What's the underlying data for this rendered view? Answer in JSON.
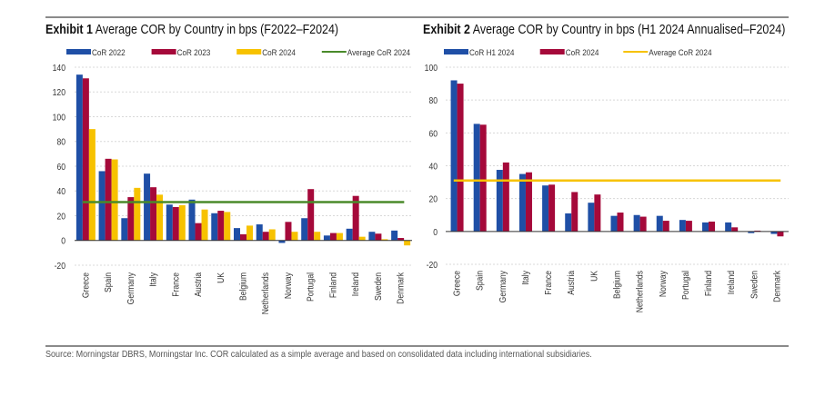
{
  "page": {
    "source": "Source: Morningstar DBRS, Morningstar Inc. COR calculated as a simple average and based on consolidated data including international subsidiaries."
  },
  "colors": {
    "blue": "#1f4fa6",
    "red": "#a5093a",
    "yellow": "#f7c200",
    "green": "#4a8a2a"
  },
  "chart_data": [
    {
      "type": "bar",
      "title_bold": "Exhibit 1",
      "title": "Average COR by Country in bps (F2022–F2024)",
      "xlabel": "",
      "ylabel": "",
      "ylim": [
        -20,
        140
      ],
      "yticks": [
        -20,
        0,
        20,
        40,
        60,
        80,
        100,
        120,
        140
      ],
      "grid": true,
      "legend_position": "top",
      "categories": [
        "Greece",
        "Spain",
        "Germany",
        "Italy",
        "France",
        "Austria",
        "UK",
        "Belgium",
        "Netherlands",
        "Norway",
        "Portugal",
        "Finland",
        "Ireland",
        "Sweden",
        "Denmark"
      ],
      "series": [
        {
          "name": "CoR 2022",
          "color": "#1f4fa6",
          "values": [
            134,
            56,
            18,
            54,
            29,
            33,
            22,
            10,
            13,
            -2,
            18,
            4,
            9.5,
            7,
            8
          ]
        },
        {
          "name": "CoR 2023",
          "color": "#a5093a",
          "values": [
            131,
            66,
            35,
            43,
            27,
            14,
            24,
            5,
            7,
            15,
            41.5,
            6,
            36,
            5.5,
            2
          ]
        },
        {
          "name": "CoR 2024",
          "color": "#f7c200",
          "values": [
            90,
            65.5,
            42.5,
            37,
            28.5,
            25,
            23,
            12,
            9,
            7,
            7,
            6,
            3,
            1,
            -4
          ]
        }
      ],
      "reference_lines": [
        {
          "name": "Average CoR 2024",
          "color": "#4a8a2a",
          "value": 31
        }
      ]
    },
    {
      "type": "bar",
      "title_bold": "Exhibit 2",
      "title": "Average COR by Country in bps (H1 2024 Annualised–F2024)",
      "xlabel": "",
      "ylabel": "",
      "ylim": [
        -20,
        100
      ],
      "yticks": [
        -20,
        0,
        20,
        40,
        60,
        80,
        100
      ],
      "grid": true,
      "legend_position": "top",
      "categories": [
        "Greece",
        "Spain",
        "Germany",
        "Italy",
        "France",
        "Austria",
        "UK",
        "Belgium",
        "Netherlands",
        "Norway",
        "Portugal",
        "Finland",
        "Ireland",
        "Sweden",
        "Denmark"
      ],
      "series": [
        {
          "name": "CoR H1 2024",
          "color": "#1f4fa6",
          "values": [
            92,
            65.5,
            37.5,
            35,
            28,
            11,
            17.5,
            9.5,
            10,
            9.5,
            7,
            5.5,
            5.5,
            -1,
            -1.5
          ]
        },
        {
          "name": "CoR 2024",
          "color": "#a5093a",
          "values": [
            90,
            65,
            42,
            36,
            28.5,
            24,
            22.5,
            11.5,
            9,
            6.5,
            6.5,
            6,
            2.5,
            0.5,
            -3
          ]
        }
      ],
      "reference_lines": [
        {
          "name": "Average CoR 2024",
          "color": "#f7c200",
          "value": 31
        }
      ]
    }
  ]
}
